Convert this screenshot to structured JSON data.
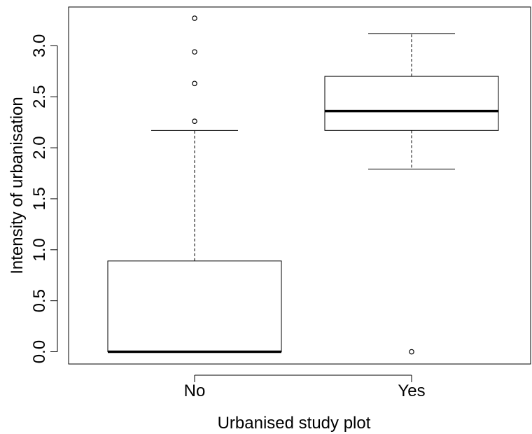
{
  "chart_data": {
    "type": "boxplot",
    "title": "",
    "xlabel": "Urbanised study plot",
    "ylabel": "Intensity of urbanisation",
    "ylim": [
      -0.12,
      3.38
    ],
    "yticks": [
      "0.0",
      "0.5",
      "1.0",
      "1.5",
      "2.0",
      "2.5",
      "3.0"
    ],
    "ytick_values": [
      0,
      0.5,
      1.0,
      1.5,
      2.0,
      2.5,
      3.0
    ],
    "categories": [
      "No",
      "Yes"
    ],
    "boxes": [
      {
        "category": "No",
        "whisker_low": 0.0,
        "q1": 0.0,
        "median": 0.0,
        "q3": 0.89,
        "whisker_high": 2.17,
        "outliers": [
          2.26,
          2.63,
          2.94,
          3.27
        ]
      },
      {
        "category": "Yes",
        "whisker_low": 1.79,
        "q1": 2.17,
        "median": 2.36,
        "q3": 2.7,
        "whisker_high": 3.12,
        "outliers": [
          0.0
        ]
      }
    ],
    "grid": false,
    "legend": "none"
  }
}
